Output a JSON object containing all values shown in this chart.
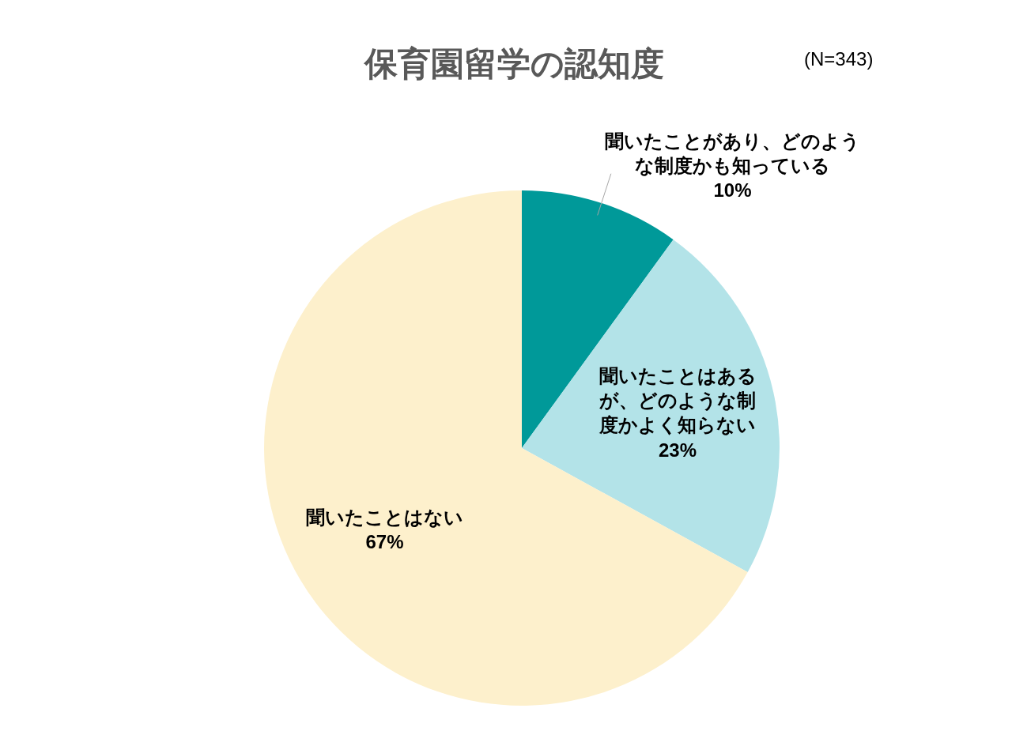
{
  "chart_data": {
    "type": "pie",
    "title": "保育園留学の認知度",
    "annotations": [
      "(N=343)"
    ],
    "categories": [
      "聞いたことがあり、どのような制度かも知っている",
      "聞いたことはあるが、どのような制度かよく知らない",
      "聞いたことはない"
    ],
    "values": [
      10,
      23,
      67
    ],
    "value_labels": [
      "10%",
      "23%",
      "67%"
    ],
    "colors": [
      "#009999",
      "#b3e3e8",
      "#fdf0cc"
    ],
    "legend": false
  }
}
